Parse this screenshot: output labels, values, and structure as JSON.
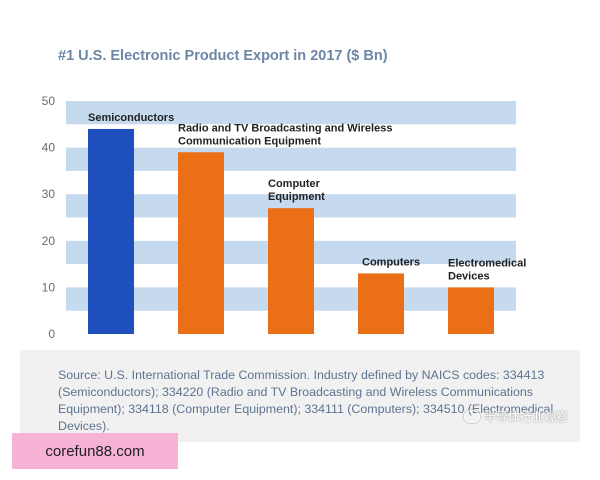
{
  "chart_data": {
    "type": "bar",
    "title": "#1 U.S. Electronic Product Export in 2017 ($ Bn)",
    "categories": [
      "Semiconductors",
      "Radio and TV Broadcasting and Wireless Communication Equipment",
      "Computer Equipment",
      "Computers",
      "Electromedical Devices"
    ],
    "category_label_lines": [
      [
        "Semiconductors"
      ],
      [
        "Radio and TV Broadcasting and Wireless",
        "Communication Equipment"
      ],
      [
        "Computer",
        "Equipment"
      ],
      [
        "Computers"
      ],
      [
        "Electromedical",
        "Devices"
      ]
    ],
    "values": [
      44,
      39,
      27,
      13,
      10
    ],
    "bar_colors": [
      "#1f4fbd",
      "#ea6f17",
      "#ea6f17",
      "#ea6f17",
      "#ea6f17"
    ],
    "ylim": [
      0,
      50
    ],
    "yticks": [
      "0",
      "10",
      "20",
      "30",
      "40",
      "50"
    ],
    "band_color": "#c5d9ef",
    "xlabel": "",
    "ylabel": "",
    "grid": "alternating horizontal bands",
    "legend": "none"
  },
  "source_note": "Source: U.S. International Trade Commission. Industry defined by NAICS codes: 334413 (Semiconductors); 334220 (Radio and TV Broadcasting and Wireless Communications Equipment); 334118 (Computer Equipment); 334111 (Computers); 334510 (Electromedical Devices).",
  "watermark": {
    "text": "半导体行业观察",
    "icon": "wechat-icon"
  },
  "site_badge": "corefun88.com"
}
